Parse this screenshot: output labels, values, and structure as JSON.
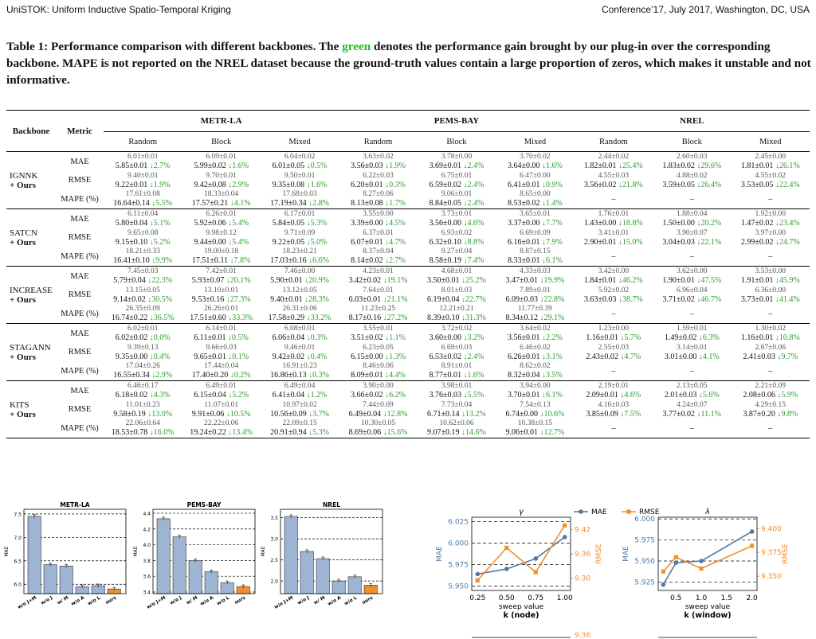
{
  "header": {
    "left": "UniSTOK: Uniform Inductive Spatio-Temporal Kriging",
    "right": "Conference’17, July 2017, Washington, DC, USA"
  },
  "caption": {
    "pre": "Table 1: Performance comparison with different backbones. The ",
    "green": "green",
    "post": " denotes the performance gain brought by our plug-in over the corresponding backbone. MAPE is not reported on the NREL dataset because the ground-truth values contain a large proportion of zeros, which makes it unstable and not informative."
  },
  "table": {
    "col_backbone": "Backbone",
    "col_metric": "Metric",
    "datasets": [
      "METR-LA",
      "PEMS-BAY",
      "NREL"
    ],
    "splits": [
      "Random",
      "Block",
      "Mixed"
    ],
    "groups": [
      {
        "name": "IGNNK",
        "ours": "+ Ours",
        "metrics": [
          "MAE",
          "RMSE",
          "MAPE (%)"
        ],
        "rows": [
          [
            [
              "6.01±0.01",
              "5.85±0.01",
              "↓2.7%"
            ],
            [
              "6.09±0.01",
              "5.99±0.02",
              "↓1.6%"
            ],
            [
              "6.04±0.02",
              "6.01±0.05",
              "↓0.5%"
            ],
            [
              "3.63±0.02",
              "3.56±0.03",
              "↓1.9%"
            ],
            [
              "3.78±0.00",
              "3.69±0.01",
              "↓2.4%"
            ],
            [
              "3.70±0.02",
              "3.64±0.00",
              "↓1.6%"
            ],
            [
              "2.44±0.02",
              "1.82±0.01",
              "↓25.4%"
            ],
            [
              "2.60±0.03",
              "1.83±0.02",
              "↓29.6%"
            ],
            [
              "2.45±0.00",
              "1.81±0.01",
              "↓26.1%"
            ]
          ],
          [
            [
              "9.40±0.01",
              "9.22±0.01",
              "↓1.9%"
            ],
            [
              "9.70±0.01",
              "9.42±0.08",
              "↓2.9%"
            ],
            [
              "9.50±0.01",
              "9.35±0.08",
              "↓1.6%"
            ],
            [
              "6.22±0.03",
              "6.20±0.01",
              "↓0.3%"
            ],
            [
              "6.75±0.01",
              "6.59±0.02",
              "↓2.4%"
            ],
            [
              "6.47±0.00",
              "6.41±0.01",
              "↓0.9%"
            ],
            [
              "4.55±0.03",
              "3.56±0.02",
              "↓21.8%"
            ],
            [
              "4.88±0.02",
              "3.59±0.05",
              "↓26.4%"
            ],
            [
              "4.55±0.02",
              "3.53±0.05",
              "↓22.4%"
            ]
          ],
          [
            [
              "17.61±0.08",
              "16.64±0.14",
              "↓5.5%"
            ],
            [
              "18.33±0.04",
              "17.57±0.21",
              "↓4.1%"
            ],
            [
              "17.68±0.03",
              "17.19±0.34",
              "↓2.8%"
            ],
            [
              "8.27±0.06",
              "8.13±0.08",
              "↓1.7%"
            ],
            [
              "9.06±0.01",
              "8.84±0.05",
              "↓2.4%"
            ],
            [
              "8.65±0.00",
              "8.53±0.02",
              "↓1.4%"
            ],
            [
              "–"
            ],
            [
              "–"
            ],
            [
              "–"
            ]
          ]
        ]
      },
      {
        "name": "SATCN",
        "ours": "+ Ours",
        "metrics": [
          "MAE",
          "RMSE",
          "MAPE (%)"
        ],
        "rows": [
          [
            [
              "6.11±0.04",
              "5.80±0.04",
              "↓5.1%"
            ],
            [
              "6.26±0.01",
              "5.92±0.06",
              "↓5.4%"
            ],
            [
              "6.17±0.01",
              "5.84±0.05",
              "↓5.3%"
            ],
            [
              "3.55±0.00",
              "3.39±0.00",
              "↓4.5%"
            ],
            [
              "3.73±0.01",
              "3.56±0.00",
              "↓4.6%"
            ],
            [
              "3.65±0.01",
              "3.37±0.00",
              "↓7.7%"
            ],
            [
              "1.76±0.01",
              "1.43±0.00",
              "↓18.8%"
            ],
            [
              "1.88±0.04",
              "1.50±0.00",
              "↓20.2%"
            ],
            [
              "1.92±0.00",
              "1.47±0.02",
              "↓23.4%"
            ]
          ],
          [
            [
              "9.65±0.08",
              "9.15±0.10",
              "↓5.2%"
            ],
            [
              "9.98±0.12",
              "9.44±0.00",
              "↓5.4%"
            ],
            [
              "9.71±0.09",
              "9.22±0.05",
              "↓5.0%"
            ],
            [
              "6.37±0.01",
              "6.07±0.01",
              "↓4.7%"
            ],
            [
              "6.93±0.02",
              "6.32±0.10",
              "↓8.8%"
            ],
            [
              "6.69±0.09",
              "6.16±0.01",
              "↓7.9%"
            ],
            [
              "3.41±0.01",
              "2.90±0.01",
              "↓15.0%"
            ],
            [
              "3.90±0.07",
              "3.04±0.03",
              "↓22.1%"
            ],
            [
              "3.97±0.00",
              "2.99±0.02",
              "↓24.7%"
            ]
          ],
          [
            [
              "18.21±0.33",
              "16.41±0.10",
              "↓9.9%"
            ],
            [
              "19.00±0.18",
              "17.51±0.11",
              "↓7.8%"
            ],
            [
              "18.23±0.21",
              "17.03±0.16",
              "↓6.6%"
            ],
            [
              "8.37±0.04",
              "8.14±0.02",
              "↓2.7%"
            ],
            [
              "9.27±0.04",
              "8.58±0.19",
              "↓7.4%"
            ],
            [
              "8.87±0.15",
              "8.33±0.01",
              "↓6.1%"
            ],
            [
              "–"
            ],
            [
              "–"
            ],
            [
              "–"
            ]
          ]
        ]
      },
      {
        "name": "INCREASE",
        "ours": "+ Ours",
        "metrics": [
          "MAE",
          "RMSE",
          "MAPE (%)"
        ],
        "rows": [
          [
            [
              "7.45±0.03",
              "5.79±0.04",
              "↓22.3%"
            ],
            [
              "7.42±0.01",
              "5.93±0.07",
              "↓20.1%"
            ],
            [
              "7.46±0.00",
              "5.90±0.01",
              "↓20.9%"
            ],
            [
              "4.23±0.01",
              "3.42±0.02",
              "↓19.1%"
            ],
            [
              "4.68±0.01",
              "3.50±0.01",
              "↓25.2%"
            ],
            [
              "4.33±0.03",
              "3.47±0.01",
              "↓19.9%"
            ],
            [
              "3.42±0.00",
              "1.84±0.01",
              "↓46.2%"
            ],
            [
              "3.62±0.00",
              "1.90±0.01",
              "↓47.5%"
            ],
            [
              "3.53±0.00",
              "1.91±0.01",
              "↓45.9%"
            ]
          ],
          [
            [
              "13.15±0.05",
              "9.14±0.02",
              "↓30.5%"
            ],
            [
              "13.10±0.01",
              "9.53±0.16",
              "↓27.3%"
            ],
            [
              "13.12±0.05",
              "9.40±0.01",
              "↓28.3%"
            ],
            [
              "7.64±0.01",
              "6.03±0.01",
              "↓21.1%"
            ],
            [
              "8.01±0.03",
              "6.19±0.04",
              "↓22.7%"
            ],
            [
              "7.89±0.01",
              "6.09±0.03",
              "↓22.8%"
            ],
            [
              "5.92±0.02",
              "3.63±0.03",
              "↓38.7%"
            ],
            [
              "6.96±0.04",
              "3.71±0.02",
              "↓46.7%"
            ],
            [
              "6.36±0.00",
              "3.73±0.01",
              "↓41.4%"
            ]
          ],
          [
            [
              "26.35±0.09",
              "16.74±0.22",
              "↓36.5%"
            ],
            [
              "26.26±0.01",
              "17.51±0.60",
              "↓33.3%"
            ],
            [
              "26.31±0.06",
              "17.58±0.29",
              "↓33.2%"
            ],
            [
              "11.23±0.25",
              "8.17±0.16",
              "↓27.2%"
            ],
            [
              "12.21±0.21",
              "8.39±0.10",
              "↓31.3%"
            ],
            [
              "11.77±0.39",
              "8.34±0.12",
              "↓29.1%"
            ],
            [
              "–"
            ],
            [
              "–"
            ],
            [
              "–"
            ]
          ]
        ]
      },
      {
        "name": "STAGANN",
        "ours": "+ Ours",
        "metrics": [
          "MAE",
          "RMSE",
          "MAPE (%)"
        ],
        "rows": [
          [
            [
              "6.02±0.01",
              "6.02±0.02",
              "↓0.0%"
            ],
            [
              "6.14±0.01",
              "6.11±0.01",
              "↓0.5%"
            ],
            [
              "6.08±0.01",
              "6.06±0.04",
              "↓0.3%"
            ],
            [
              "3.55±0.01",
              "3.51±0.02",
              "↓1.1%"
            ],
            [
              "3.72±0.02",
              "3.60±0.00",
              "↓3.2%"
            ],
            [
              "3.64±0.02",
              "3.56±0.01",
              "↓2.2%"
            ],
            [
              "1.23±0.00",
              "1.16±0.01",
              "↓5.7%"
            ],
            [
              "1.59±0.01",
              "1.49±0.02",
              "↓6.3%"
            ],
            [
              "1.30±0.02",
              "1.16±0.01",
              "↓10.8%"
            ]
          ],
          [
            [
              "9.39±0.13",
              "9.35±0.00",
              "↓0.4%"
            ],
            [
              "9.66±0.03",
              "9.65±0.01",
              "↓0.1%"
            ],
            [
              "9.46±0.01",
              "9.42±0.02",
              "↓0.4%"
            ],
            [
              "6.23±0.05",
              "6.15±0.00",
              "↓1.3%"
            ],
            [
              "6.69±0.03",
              "6.53±0.02",
              "↓2.4%"
            ],
            [
              "6.46±0.02",
              "6.26±0.01",
              "↓3.1%"
            ],
            [
              "2.55±0.03",
              "2.43±0.02",
              "↓4.7%"
            ],
            [
              "3.14±0.01",
              "3.01±0.00",
              "↓4.1%"
            ],
            [
              "2.67±0.06",
              "2.41±0.03",
              "↓9.7%"
            ]
          ],
          [
            [
              "17.04±0.26",
              "16.55±0.34",
              "↓2.9%"
            ],
            [
              "17.44±0.04",
              "17.40±0.20",
              "↓0.2%"
            ],
            [
              "16.91±0.23",
              "16.86±0.13",
              "↓0.3%"
            ],
            [
              "8.46±0.06",
              "8.09±0.01",
              "↓4.4%"
            ],
            [
              "8.91±0.01",
              "8.77±0.01",
              "↓1.6%"
            ],
            [
              "8.62±0.02",
              "8.32±0.04",
              "↓3.5%"
            ],
            [
              "–"
            ],
            [
              "–"
            ],
            [
              "–"
            ]
          ]
        ]
      },
      {
        "name": "KITS",
        "ours": "+ Ours",
        "metrics": [
          "MAE",
          "RMSE",
          "MAPE (%)"
        ],
        "rows": [
          [
            [
              "6.46±0.17",
              "6.18±0.02",
              "↓4.3%"
            ],
            [
              "6.49±0.01",
              "6.15±0.04",
              "↓5.2%"
            ],
            [
              "6.49±0.04",
              "6.41±0.04",
              "↓1.2%"
            ],
            [
              "3.90±0.00",
              "3.66±0.02",
              "↓6.2%"
            ],
            [
              "3.98±0.01",
              "3.76±0.03",
              "↓5.5%"
            ],
            [
              "3.94±0.00",
              "3.70±0.01",
              "↓6.1%"
            ],
            [
              "2.19±0.01",
              "2.09±0.01",
              "↓4.6%"
            ],
            [
              "2.13±0.05",
              "2.01±0.03",
              "↓5.6%"
            ],
            [
              "2.21±0.09",
              "2.08±0.06",
              "↓5.9%"
            ]
          ],
          [
            [
              "11.01±0.23",
              "9.58±0.19",
              "↓13.0%"
            ],
            [
              "11.07±0.01",
              "9.91±0.06",
              "↓10.5%"
            ],
            [
              "10.97±0.02",
              "10.56±0.09",
              "↓3.7%"
            ],
            [
              "7.44±0.09",
              "6.49±0.04",
              "↓12.8%"
            ],
            [
              "7.73±0.04",
              "6.71±0.14",
              "↓13.2%"
            ],
            [
              "7.54±0.13",
              "6.74±0.00",
              "↓10.6%"
            ],
            [
              "4.16±0.03",
              "3.85±0.09",
              "↓7.5%"
            ],
            [
              "4.24±0.07",
              "3.77±0.02",
              "↓11.1%"
            ],
            [
              "4.29±0.15",
              "3.87±0.20",
              "↓9.8%"
            ]
          ],
          [
            [
              "22.06±0.64",
              "18.53±0.78",
              "↓16.0%"
            ],
            [
              "22.22±0.06",
              "19.24±0.22",
              "↓13.4%"
            ],
            [
              "22.09±0.15",
              "20.91±0.94",
              "↓5.3%"
            ],
            [
              "10.30±0.05",
              "8.69±0.06",
              "↓15.6%"
            ],
            [
              "10.62±0.06",
              "9.07±0.19",
              "↓14.6%"
            ],
            [
              "10.38±0.15",
              "9.06±0.01",
              "↓12.7%"
            ],
            [
              "–"
            ],
            [
              "–"
            ],
            [
              "–"
            ]
          ]
        ]
      }
    ]
  },
  "chart_data": [
    {
      "type": "bar",
      "title": "METR-LA",
      "ylabel": "MAE",
      "categories": [
        "w/o J+M",
        "w/o J",
        "w/ M",
        "w/o A",
        "w/o L",
        "ours"
      ],
      "values": [
        7.45,
        6.42,
        6.39,
        5.95,
        5.97,
        5.9
      ],
      "ylim": [
        5.8,
        7.6
      ],
      "yticks": [
        6.0,
        6.5,
        7.0,
        7.5
      ],
      "colors": [
        "#9db4d3",
        "#9db4d3",
        "#9db4d3",
        "#9db4d3",
        "#9db4d3",
        "#f28e2b"
      ]
    },
    {
      "type": "bar",
      "title": "PEMS-BAY",
      "ylabel": "MAE",
      "categories": [
        "w/o J+M",
        "w/o J",
        "w/ M",
        "w/o A",
        "w/o L",
        "ours"
      ],
      "values": [
        4.33,
        4.1,
        3.8,
        3.66,
        3.52,
        3.47
      ],
      "ylim": [
        3.38,
        4.45
      ],
      "yticks": [
        3.4,
        3.6,
        3.8,
        4.0,
        4.2,
        4.4
      ],
      "colors": [
        "#9db4d3",
        "#9db4d3",
        "#9db4d3",
        "#9db4d3",
        "#9db4d3",
        "#f28e2b"
      ]
    },
    {
      "type": "bar",
      "title": "NREL",
      "ylabel": "MAE",
      "categories": [
        "w/o J+M",
        "w/o J",
        "w/ M",
        "w/o A",
        "w/o L",
        "ours"
      ],
      "values": [
        3.53,
        2.7,
        2.53,
        2.0,
        2.1,
        1.9
      ],
      "ylim": [
        1.7,
        3.7
      ],
      "yticks": [
        2.0,
        2.5,
        3.0,
        3.5
      ],
      "colors": [
        "#9db4d3",
        "#9db4d3",
        "#9db4d3",
        "#9db4d3",
        "#9db4d3",
        "#f28e2b"
      ]
    },
    {
      "type": "line",
      "title": "γ",
      "xlabel": "sweep value",
      "subtitle": "k (node)",
      "ylabel": "MAE",
      "y2label": "RMSE",
      "x": [
        0.25,
        0.5,
        0.75,
        1.0
      ],
      "series": [
        {
          "name": "MAE",
          "values": [
            5.964,
            5.97,
            5.982,
            6.007
          ],
          "axis": "left"
        },
        {
          "name": "RMSE",
          "values": [
            9.295,
            9.375,
            9.315,
            9.43
          ],
          "axis": "right"
        }
      ],
      "ylim": [
        5.945,
        6.03
      ],
      "y2lim": [
        9.27,
        9.45
      ],
      "xticks": [
        "0.25",
        "0.50",
        "0.75",
        "1.00"
      ],
      "yticks": [
        "5.950",
        "5.975",
        "6.000",
        "6.025"
      ],
      "y2ticks": [
        "9.30",
        "9.36",
        "9.42"
      ]
    },
    {
      "type": "line",
      "title": "λ",
      "xlabel": "sweep value",
      "subtitle": "k (window)",
      "ylabel": "MAE",
      "y2label": "RMSE",
      "x": [
        0.25,
        0.5,
        1.0,
        2.0
      ],
      "series": [
        {
          "name": "MAE",
          "values": [
            5.922,
            5.948,
            5.95,
            5.985
          ],
          "axis": "left"
        },
        {
          "name": "RMSE",
          "values": [
            9.355,
            9.37,
            9.358,
            9.382
          ],
          "axis": "right"
        }
      ],
      "ylim": [
        5.915,
        6.002
      ],
      "y2lim": [
        9.335,
        9.412
      ],
      "xticks": [
        "0.5",
        "1.0",
        "1.5",
        "2.0"
      ],
      "yticks": [
        "5.925",
        "5.950",
        "5.975",
        "6.000"
      ],
      "y2ticks": [
        "9.350",
        "9.375",
        "9.400"
      ]
    }
  ],
  "legend": {
    "mae": "MAE",
    "rmse": "RMSE",
    "mae_color": "#4e79a7",
    "rmse_color": "#f28e2b"
  },
  "bottom": {
    "partial_rmse_tick": "9.36"
  }
}
